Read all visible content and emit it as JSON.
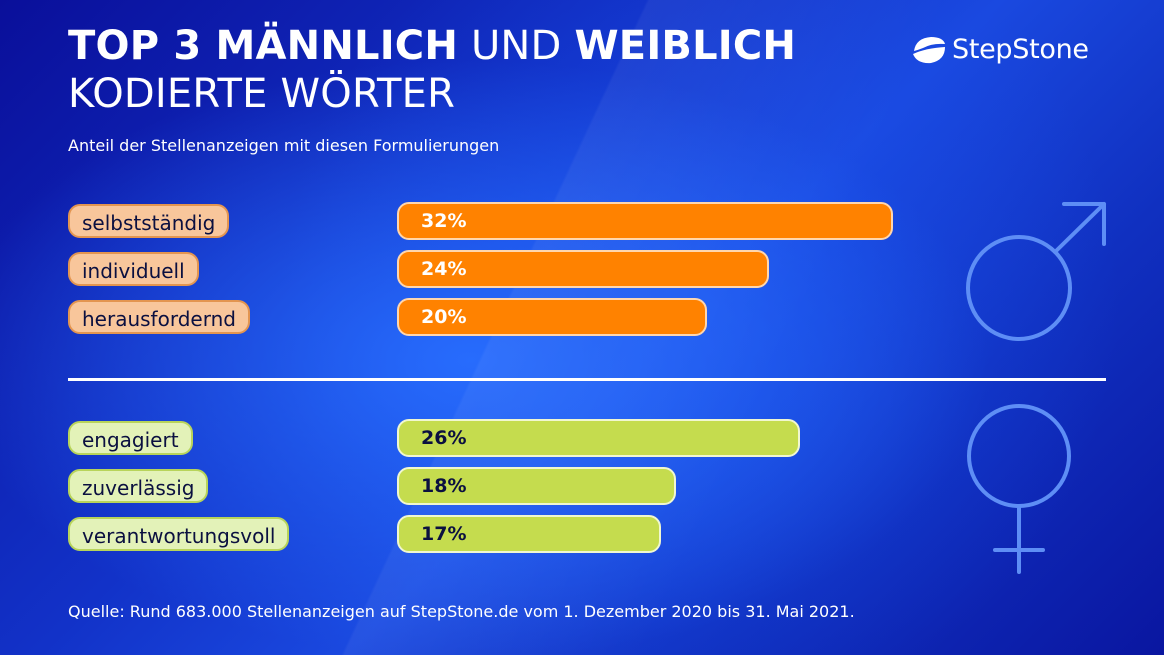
{
  "title": {
    "bold_1": "TOP 3 MÄNNLICH",
    "regular_1": "UND",
    "bold_2": "WEIBLICH",
    "line_2": "KODIERTE WÖRTER"
  },
  "subtitle": "Anteil der Stellenanzeigen mit diesen Formulierungen",
  "logo": {
    "text": "StepStone",
    "icon": "stepstone-logo-icon"
  },
  "source": "Quelle: Rund 683.000 Stellenanzeigen auf StepStone.de vom 1. Dezember 2020 bis 31. Mai 2021.",
  "colors": {
    "male_bar": "#ff8200",
    "female_bar": "#c5dc4e",
    "male_label": "#f8c69b",
    "female_label": "#e3f2b8",
    "symbol": "#5e8ef5"
  },
  "chart_data": {
    "type": "bar",
    "orientation": "horizontal",
    "unit": "%",
    "series": [
      {
        "name": "männlich",
        "symbol": "male-symbol-icon",
        "categories": [
          "selbstständig",
          "individuell",
          "herausfordernd"
        ],
        "values": [
          32,
          24,
          20
        ],
        "labels": [
          "32%",
          "24%",
          "20%"
        ]
      },
      {
        "name": "weiblich",
        "symbol": "female-symbol-icon",
        "categories": [
          "engagiert",
          "zuverlässig",
          "verantwortungsvoll"
        ],
        "values": [
          26,
          18,
          17
        ],
        "labels": [
          "26%",
          "18%",
          "17%"
        ]
      }
    ]
  }
}
